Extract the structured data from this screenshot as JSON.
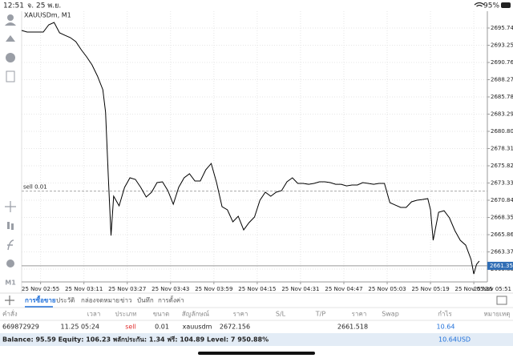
{
  "status_bar": {
    "time": "12:51",
    "date": "จ. 25 พ.ย.",
    "battery": "95%"
  },
  "toolbar": {
    "timeframe": "M1"
  },
  "chart_data": {
    "type": "line",
    "title": "XAUUSDm, M1",
    "color": "#000000",
    "grid": true,
    "x": [
      "25 Nov 02:48",
      "25 Nov 02:50",
      "25 Nov 02:52",
      "25 Nov 02:54",
      "25 Nov 02:56",
      "25 Nov 02:58",
      "25 Nov 03:00",
      "25 Nov 03:02",
      "25 Nov 03:04",
      "25 Nov 03:06",
      "25 Nov 03:08",
      "25 Nov 03:10",
      "25 Nov 03:12",
      "25 Nov 03:14",
      "25 Nov 03:16",
      "25 Nov 03:18",
      "25 Nov 03:19",
      "25 Nov 03:20",
      "25 Nov 03:21",
      "25 Nov 03:22",
      "25 Nov 03:24",
      "25 Nov 03:26",
      "25 Nov 03:28",
      "25 Nov 03:30",
      "25 Nov 03:32",
      "25 Nov 03:34",
      "25 Nov 03:36",
      "25 Nov 03:38",
      "25 Nov 03:40",
      "25 Nov 03:42",
      "25 Nov 03:44",
      "25 Nov 03:46",
      "25 Nov 03:48",
      "25 Nov 03:50",
      "25 Nov 03:52",
      "25 Nov 03:54",
      "25 Nov 03:56",
      "25 Nov 03:58",
      "25 Nov 04:00",
      "25 Nov 04:02",
      "25 Nov 04:04",
      "25 Nov 04:06",
      "25 Nov 04:08",
      "25 Nov 04:10",
      "25 Nov 04:12",
      "25 Nov 04:14",
      "25 Nov 04:16",
      "25 Nov 04:18",
      "25 Nov 04:20",
      "25 Nov 04:22",
      "25 Nov 04:24",
      "25 Nov 04:26",
      "25 Nov 04:28",
      "25 Nov 04:30",
      "25 Nov 04:32",
      "25 Nov 04:34",
      "25 Nov 04:36",
      "25 Nov 04:38",
      "25 Nov 04:40",
      "25 Nov 04:42",
      "25 Nov 04:44",
      "25 Nov 04:46",
      "25 Nov 04:48",
      "25 Nov 04:50",
      "25 Nov 04:52",
      "25 Nov 04:54",
      "25 Nov 04:56",
      "25 Nov 04:58",
      "25 Nov 05:00",
      "25 Nov 05:02",
      "25 Nov 05:04",
      "25 Nov 05:06",
      "25 Nov 05:08",
      "25 Nov 05:10",
      "25 Nov 05:12",
      "25 Nov 05:14",
      "25 Nov 05:16",
      "25 Nov 05:18",
      "25 Nov 05:19",
      "25 Nov 05:20",
      "25 Nov 05:22",
      "25 Nov 05:24",
      "25 Nov 05:26",
      "25 Nov 05:28",
      "25 Nov 05:30",
      "25 Nov 05:32",
      "25 Nov 05:34",
      "25 Nov 05:35",
      "25 Nov 05:36",
      "25 Nov 05:37"
    ],
    "values": [
      2695.39,
      2695.16,
      2695.16,
      2695.16,
      2695.16,
      2696.2,
      2696.55,
      2695.04,
      2694.69,
      2694.35,
      2693.77,
      2692.61,
      2691.57,
      2690.41,
      2688.79,
      2686.82,
      2683.58,
      2674.31,
      2665.74,
      2671.42,
      2670.03,
      2672.69,
      2674.08,
      2673.85,
      2672.69,
      2671.3,
      2672.0,
      2673.39,
      2673.5,
      2672.23,
      2670.26,
      2672.69,
      2674.08,
      2674.66,
      2673.62,
      2673.62,
      2675.24,
      2676.16,
      2673.39,
      2669.91,
      2669.45,
      2667.71,
      2668.52,
      2666.55,
      2667.6,
      2668.41,
      2670.84,
      2672.0,
      2671.42,
      2672.0,
      2672.23,
      2673.5,
      2674.08,
      2673.27,
      2673.27,
      2673.15,
      2673.27,
      2673.5,
      2673.5,
      2673.39,
      2673.15,
      2673.15,
      2672.92,
      2673.04,
      2673.04,
      2673.39,
      2673.27,
      2673.15,
      2673.27,
      2673.27,
      2670.49,
      2670.14,
      2669.8,
      2669.8,
      2670.61,
      2670.84,
      2670.95,
      2671.07,
      2669.45,
      2665.05,
      2669.1,
      2669.33,
      2668.29,
      2666.44,
      2665.05,
      2664.35,
      2662.27,
      2660.18,
      2661.57,
      2662.04
    ],
    "xlim": [
      "25 Nov 02:48",
      "25 Nov 05:40"
    ],
    "xticks": [
      "25 Nov 02:55",
      "25 Nov 03:11",
      "25 Nov 03:27",
      "25 Nov 03:43",
      "25 Nov 03:59",
      "25 Nov 04:15",
      "25 Nov 04:31",
      "25 Nov 04:47",
      "25 Nov 05:03",
      "25 Nov 05:19",
      "25 Nov 05:35",
      "25 Nov 05:51"
    ],
    "ylim": [
      2659.03,
      2698.17
    ],
    "yticks": [
      {
        "value": 2660.88,
        "label": "2660.880"
      },
      {
        "value": 2663.37,
        "label": "2663.370"
      },
      {
        "value": 2665.86,
        "label": "2665.860"
      },
      {
        "value": 2668.35,
        "label": "2668.350"
      },
      {
        "value": 2670.84,
        "label": "2670.840"
      },
      {
        "value": 2673.33,
        "label": "2673.330"
      },
      {
        "value": 2675.82,
        "label": "2675.820"
      },
      {
        "value": 2678.31,
        "label": "2678.310"
      },
      {
        "value": 2680.8,
        "label": "2680.800"
      },
      {
        "value": 2683.29,
        "label": "2683.290"
      },
      {
        "value": 2685.78,
        "label": "2685.780"
      },
      {
        "value": 2688.27,
        "label": "2688.270"
      },
      {
        "value": 2690.76,
        "label": "2690.760"
      },
      {
        "value": 2693.25,
        "label": "2693.250"
      },
      {
        "value": 2695.74,
        "label": "2695.740"
      }
    ],
    "order_label": "sell 0.01",
    "order_level": 2672.156,
    "current_price": {
      "value": 2661.358,
      "label": "2661.358"
    }
  },
  "tabs": [
    "การซื้อขาย",
    "ประวัติ",
    "กล่องจดหมาย",
    "ข่าว",
    "บันทึก",
    "การตั้งค่า"
  ],
  "table": {
    "headers": [
      "คำสั่ง",
      "เวลา",
      "ประเภท",
      "ขนาด",
      "สัญลักษณ์",
      "ราคา",
      "S/L",
      "T/P",
      "ราคา",
      "Swap",
      "กำไร",
      "หมายเหตุ"
    ],
    "row": {
      "order": "669872929",
      "time": "11.25 05:24",
      "type": "sell",
      "volume": "0.01",
      "symbol": "xauusdm",
      "open_price": "2672.156",
      "price": "2661.518",
      "profit": "10.64"
    }
  },
  "footer": {
    "summary": "Balance: 95.59 Equity: 106.23 พลักประกัน: 1.34 ฟรี: 104.89 Level: 7 950.88%",
    "profit": "10.64",
    "currency": "USD"
  }
}
